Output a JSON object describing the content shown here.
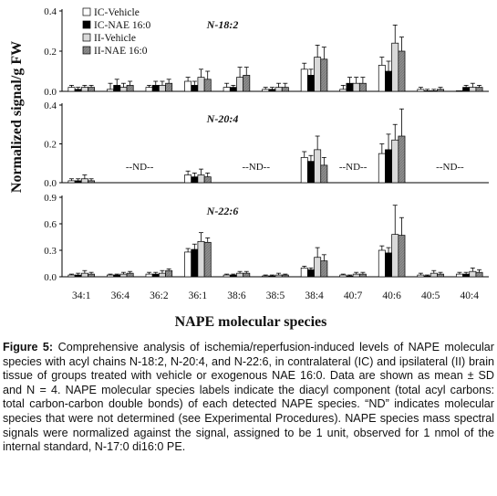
{
  "chart_data": {
    "type": "bar",
    "xlabel": "NAPE molecular species",
    "ylabel": "Normalized signal/g FW",
    "categories": [
      "34:1",
      "36:4",
      "36:2",
      "36:1",
      "38:6",
      "38:5",
      "38:4",
      "40:7",
      "40:6",
      "40:5",
      "40:4"
    ],
    "legend": {
      "entries": [
        "IC-Vehicle",
        "IC-NAE 16:0",
        "II-Vehicle",
        "II-NAE 16:0"
      ],
      "colors": [
        "#ffffff",
        "#000000",
        "#d9d9d9",
        "#8c8c8c"
      ],
      "placement": "top-left"
    },
    "not_determined_label": "--ND--",
    "panels": [
      {
        "title": "N-18:2",
        "ylim": [
          0,
          0.4
        ],
        "yticks": [
          "0.0",
          "0.2",
          "0.4"
        ],
        "nd_categories": [],
        "series": [
          {
            "name": "IC-Vehicle",
            "values": [
              0.02,
              0.01,
              0.02,
              0.05,
              0.02,
              0.01,
              0.11,
              0.01,
              0.13,
              0.01,
              0.0
            ],
            "sd": [
              0.01,
              0.03,
              0.01,
              0.02,
              0.02,
              0.01,
              0.03,
              0.02,
              0.04,
              0.01,
              0.0
            ]
          },
          {
            "name": "IC-NAE 16:0",
            "values": [
              0.01,
              0.03,
              0.03,
              0.03,
              0.02,
              0.01,
              0.08,
              0.04,
              0.1,
              0.0,
              0.02
            ],
            "sd": [
              0.01,
              0.03,
              0.02,
              0.02,
              0.01,
              0.01,
              0.03,
              0.03,
              0.05,
              0.01,
              0.01
            ]
          },
          {
            "name": "II-Vehicle",
            "values": [
              0.02,
              0.02,
              0.03,
              0.07,
              0.07,
              0.02,
              0.17,
              0.04,
              0.24,
              0.0,
              0.02
            ],
            "sd": [
              0.01,
              0.02,
              0.02,
              0.04,
              0.05,
              0.02,
              0.06,
              0.03,
              0.09,
              0.01,
              0.02
            ]
          },
          {
            "name": "II-NAE 16:0",
            "values": [
              0.02,
              0.03,
              0.04,
              0.06,
              0.08,
              0.02,
              0.16,
              0.04,
              0.2,
              0.01,
              0.02
            ],
            "sd": [
              0.01,
              0.02,
              0.02,
              0.04,
              0.04,
              0.02,
              0.06,
              0.03,
              0.07,
              0.01,
              0.01
            ]
          }
        ]
      },
      {
        "title": "N-20:4",
        "ylim": [
          0,
          0.4
        ],
        "yticks": [
          "0.0",
          "0.2",
          "0.4"
        ],
        "nd_categories": [
          "36:4",
          "36:2",
          "38:6",
          "38:5",
          "40:7",
          "40:5",
          "40:4"
        ],
        "series": [
          {
            "name": "IC-Vehicle",
            "values": [
              0.01,
              null,
              null,
              0.04,
              null,
              null,
              0.13,
              null,
              0.15,
              null,
              null
            ],
            "sd": [
              0.01,
              null,
              null,
              0.02,
              null,
              null,
              0.03,
              null,
              0.05,
              null,
              null
            ]
          },
          {
            "name": "IC-NAE 16:0",
            "values": [
              0.01,
              null,
              null,
              0.03,
              null,
              null,
              0.11,
              null,
              0.17,
              null,
              null
            ],
            "sd": [
              0.01,
              null,
              null,
              0.02,
              null,
              null,
              0.03,
              null,
              0.08,
              null,
              null
            ]
          },
          {
            "name": "II-Vehicle",
            "values": [
              0.02,
              null,
              null,
              0.04,
              null,
              null,
              0.17,
              null,
              0.22,
              null,
              null
            ],
            "sd": [
              0.02,
              null,
              null,
              0.03,
              null,
              null,
              0.07,
              null,
              0.08,
              null,
              null
            ]
          },
          {
            "name": "II-NAE 16:0",
            "values": [
              0.01,
              null,
              null,
              0.03,
              null,
              null,
              0.09,
              null,
              0.24,
              null,
              null
            ],
            "sd": [
              0.01,
              null,
              null,
              0.02,
              null,
              null,
              0.04,
              null,
              0.14,
              null,
              null
            ]
          }
        ]
      },
      {
        "title": "N-22:6",
        "ylim": [
          0,
          0.9
        ],
        "yticks": [
          "0.0",
          "0.3",
          "0.6",
          "0.9"
        ],
        "nd_categories": [],
        "series": [
          {
            "name": "IC-Vehicle",
            "values": [
              0.02,
              0.02,
              0.03,
              0.28,
              0.02,
              0.01,
              0.1,
              0.02,
              0.3,
              0.02,
              0.03
            ],
            "sd": [
              0.01,
              0.01,
              0.02,
              0.04,
              0.01,
              0.01,
              0.02,
              0.01,
              0.05,
              0.02,
              0.02
            ]
          },
          {
            "name": "IC-NAE 16:0",
            "values": [
              0.02,
              0.02,
              0.03,
              0.31,
              0.02,
              0.01,
              0.08,
              0.01,
              0.27,
              0.01,
              0.03
            ],
            "sd": [
              0.02,
              0.01,
              0.02,
              0.06,
              0.01,
              0.01,
              0.02,
              0.01,
              0.06,
              0.01,
              0.02
            ]
          },
          {
            "name": "II-Vehicle",
            "values": [
              0.04,
              0.03,
              0.04,
              0.4,
              0.04,
              0.02,
              0.22,
              0.03,
              0.48,
              0.04,
              0.06
            ],
            "sd": [
              0.03,
              0.02,
              0.03,
              0.1,
              0.02,
              0.02,
              0.11,
              0.02,
              0.33,
              0.03,
              0.04
            ]
          },
          {
            "name": "II-NAE 16:0",
            "values": [
              0.03,
              0.04,
              0.07,
              0.39,
              0.04,
              0.02,
              0.18,
              0.03,
              0.47,
              0.03,
              0.05
            ],
            "sd": [
              0.02,
              0.02,
              0.02,
              0.05,
              0.02,
              0.01,
              0.07,
              0.02,
              0.2,
              0.02,
              0.03
            ]
          }
        ]
      }
    ]
  },
  "caption": {
    "label": "Figure 5:",
    "text": "Comprehensive analysis of ischemia/reperfusion-induced levels of NAPE molecular species with acyl chains N-18:2, N-20:4, and N-22:6, in contralateral (IC) and ipsilateral (II) brain tissue of groups treated with vehicle or exogenous NAE 16:0. Data are shown as mean ± SD and N = 4. NAPE molecular species labels indicate the diacyl component (total acyl carbons: total carbon-carbon double bonds) of each detected NAPE species. “ND” indicates molecular species that were not determined (see Experimental Procedures). NAPE species mass spectral signals were normalized against the signal, assigned to be 1 unit, observed for 1 nmol of the internal standard, N-17:0 di16:0 PE."
  }
}
